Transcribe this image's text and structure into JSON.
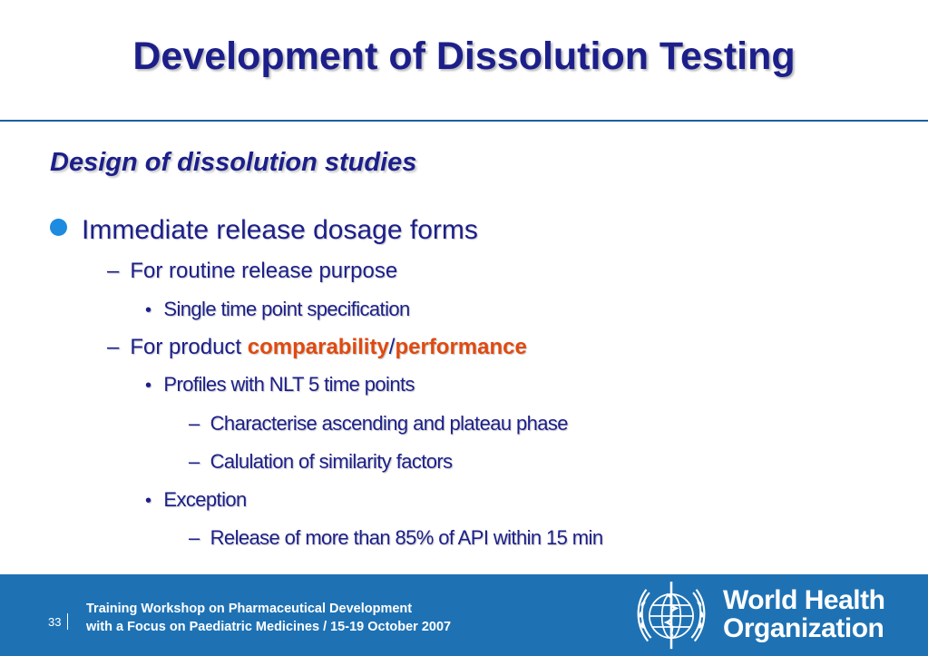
{
  "title": "Development of Dissolution Testing",
  "subtitle": "Design of dissolution studies",
  "bullets": {
    "b1": "Immediate release dosage forms",
    "b1_1": "For routine release purpose",
    "b1_1_1": "Single time point specification",
    "b1_2_prefix": "For product ",
    "b1_2_hl1": "comparability",
    "b1_2_sep": "/",
    "b1_2_hl2": "performance",
    "b1_2_1": "Profiles with NLT 5 time points",
    "b1_2_1_1": "Characterise ascending and plateau phase",
    "b1_2_1_2": "Calulation of similarity factors",
    "b1_2_2": "Exception",
    "b1_2_2_1": "Release of more than 85% of API within 15 min"
  },
  "footer": {
    "page_number": "33",
    "line1": "Training Workshop on Pharmaceutical Development",
    "line2": "with a Focus on Paediatric Medicines / 15-19 October 2007",
    "org_line1": "World Health",
    "org_line2": "Organization"
  },
  "colors": {
    "title": "#1c1f8a",
    "highlight": "#e04a10",
    "footer_bg": "#1e72b4",
    "bullet_dot": "#1c8be0"
  },
  "icons": {
    "bullet": "filled-circle",
    "logo": "who-emblem-icon"
  }
}
